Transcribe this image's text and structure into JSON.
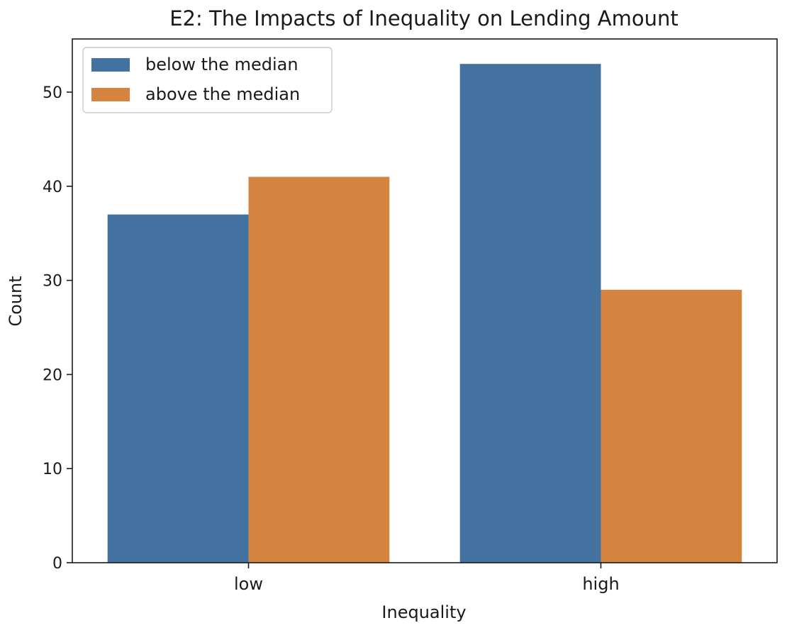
{
  "chart_data": {
    "type": "bar",
    "title": "E2: The Impacts of Inequality on Lending Amount",
    "xlabel": "Inequality",
    "ylabel": "Count",
    "categories": [
      "low",
      "high"
    ],
    "series": [
      {
        "name": "below the median",
        "values": [
          37,
          53
        ],
        "color": "#4472a0"
      },
      {
        "name": "above the median",
        "values": [
          41,
          29
        ],
        "color": "#d4843f"
      }
    ],
    "ylim": [
      0,
      55.65
    ],
    "yticks": [
      0,
      10,
      20,
      30,
      40,
      50
    ],
    "legend": {
      "placement": "top-left"
    },
    "grid": false
  }
}
